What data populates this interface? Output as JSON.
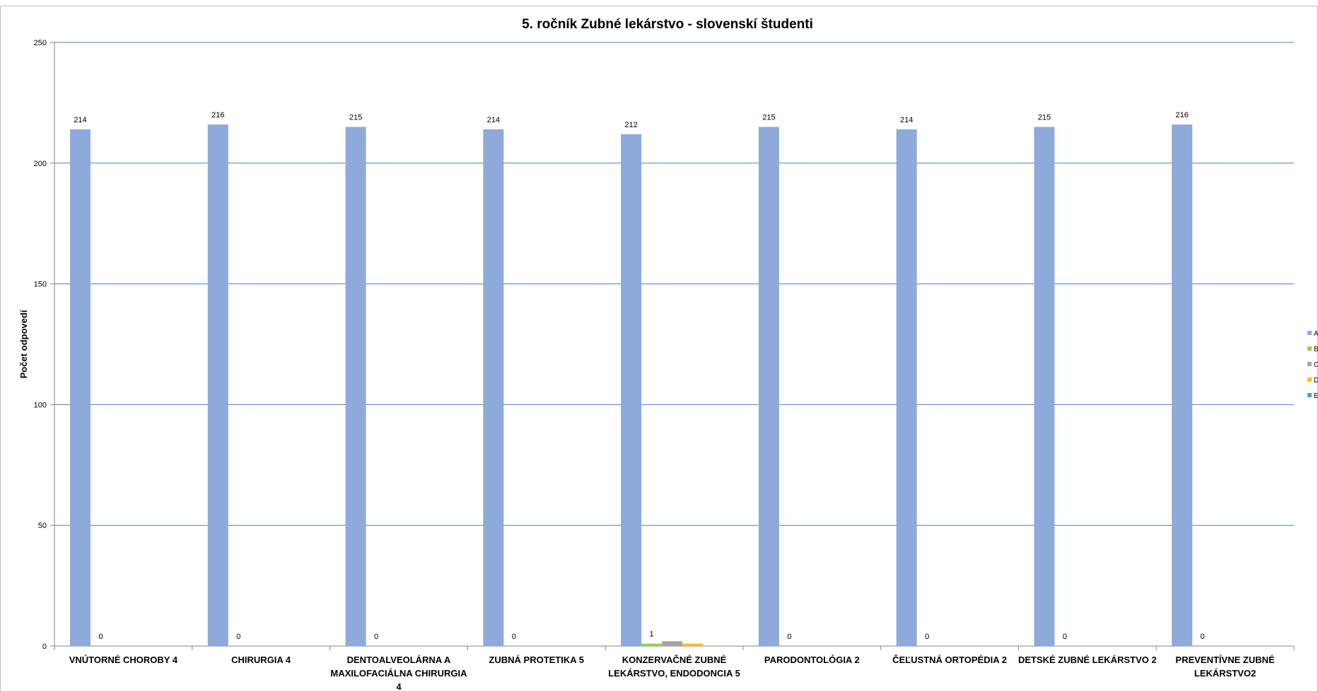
{
  "chart_data": {
    "type": "bar",
    "title": "5. ročník Zubné lekárstvo -  slovenskí študenti",
    "xlabel": "",
    "ylabel": "Počet odpovedí",
    "ylim": [
      0,
      250
    ],
    "yticks": [
      0,
      50,
      100,
      150,
      200,
      250
    ],
    "grid": true,
    "legend_position": "right",
    "categories": [
      [
        "VNÚTORNÉ CHOROBY 4"
      ],
      [
        "CHIRURGIA 4"
      ],
      [
        "DENTOALVEOLÁRNA A",
        "MAXILOFACIÁLNA CHIRURGIA",
        "4"
      ],
      [
        "ZUBNÁ PROTETIKA 5"
      ],
      [
        "KONZERVAČNÉ ZUBNÉ",
        "LEKÁRSTVO, ENDODONCIA 5"
      ],
      [
        "PARODONTOLÓGIA 2"
      ],
      [
        "ČEĽUSTNÁ ORTOPÉDIA 2"
      ],
      [
        "DETSKÉ ZUBNÉ LEKÁRSTVO 2"
      ],
      [
        "PREVENTÍVNE ZUBNÉ",
        "LEKÁRSTVO2"
      ]
    ],
    "series": [
      {
        "name": "A",
        "color": "#8eaadb",
        "values": [
          214,
          216,
          215,
          214,
          212,
          215,
          214,
          215,
          216
        ],
        "labels": [
          "214",
          "216",
          "215",
          "214",
          "212",
          "215",
          "214",
          "215",
          "216"
        ]
      },
      {
        "name": "B",
        "color": "#92d050",
        "values": [
          0,
          0,
          0,
          0,
          1,
          0,
          0,
          0,
          0
        ],
        "labels": [
          "0",
          "0",
          "0",
          "0",
          "1",
          "0",
          "0",
          "0",
          "0"
        ]
      },
      {
        "name": "C",
        "color": "#a5a5a5",
        "values": [
          0,
          0,
          0,
          0,
          2,
          0,
          0,
          0,
          0
        ],
        "labels": [
          "",
          "",
          "",
          "",
          "",
          "",
          "",
          "",
          ""
        ]
      },
      {
        "name": "D",
        "color": "#ffc000",
        "values": [
          0,
          0,
          0,
          0,
          1,
          0,
          0,
          0,
          0
        ],
        "labels": [
          "",
          "",
          "",
          "",
          "",
          "",
          "",
          "",
          ""
        ]
      },
      {
        "name": "E",
        "color": "#5b9bd5",
        "values": [
          0,
          0,
          0,
          0,
          0,
          0,
          0,
          0,
          0
        ],
        "labels": [
          "",
          "",
          "",
          "",
          "",
          "",
          "",
          "",
          ""
        ]
      }
    ],
    "colors": {
      "grid": "#4f81bd",
      "axis": "#868686",
      "border": "#bfbfbf"
    }
  }
}
